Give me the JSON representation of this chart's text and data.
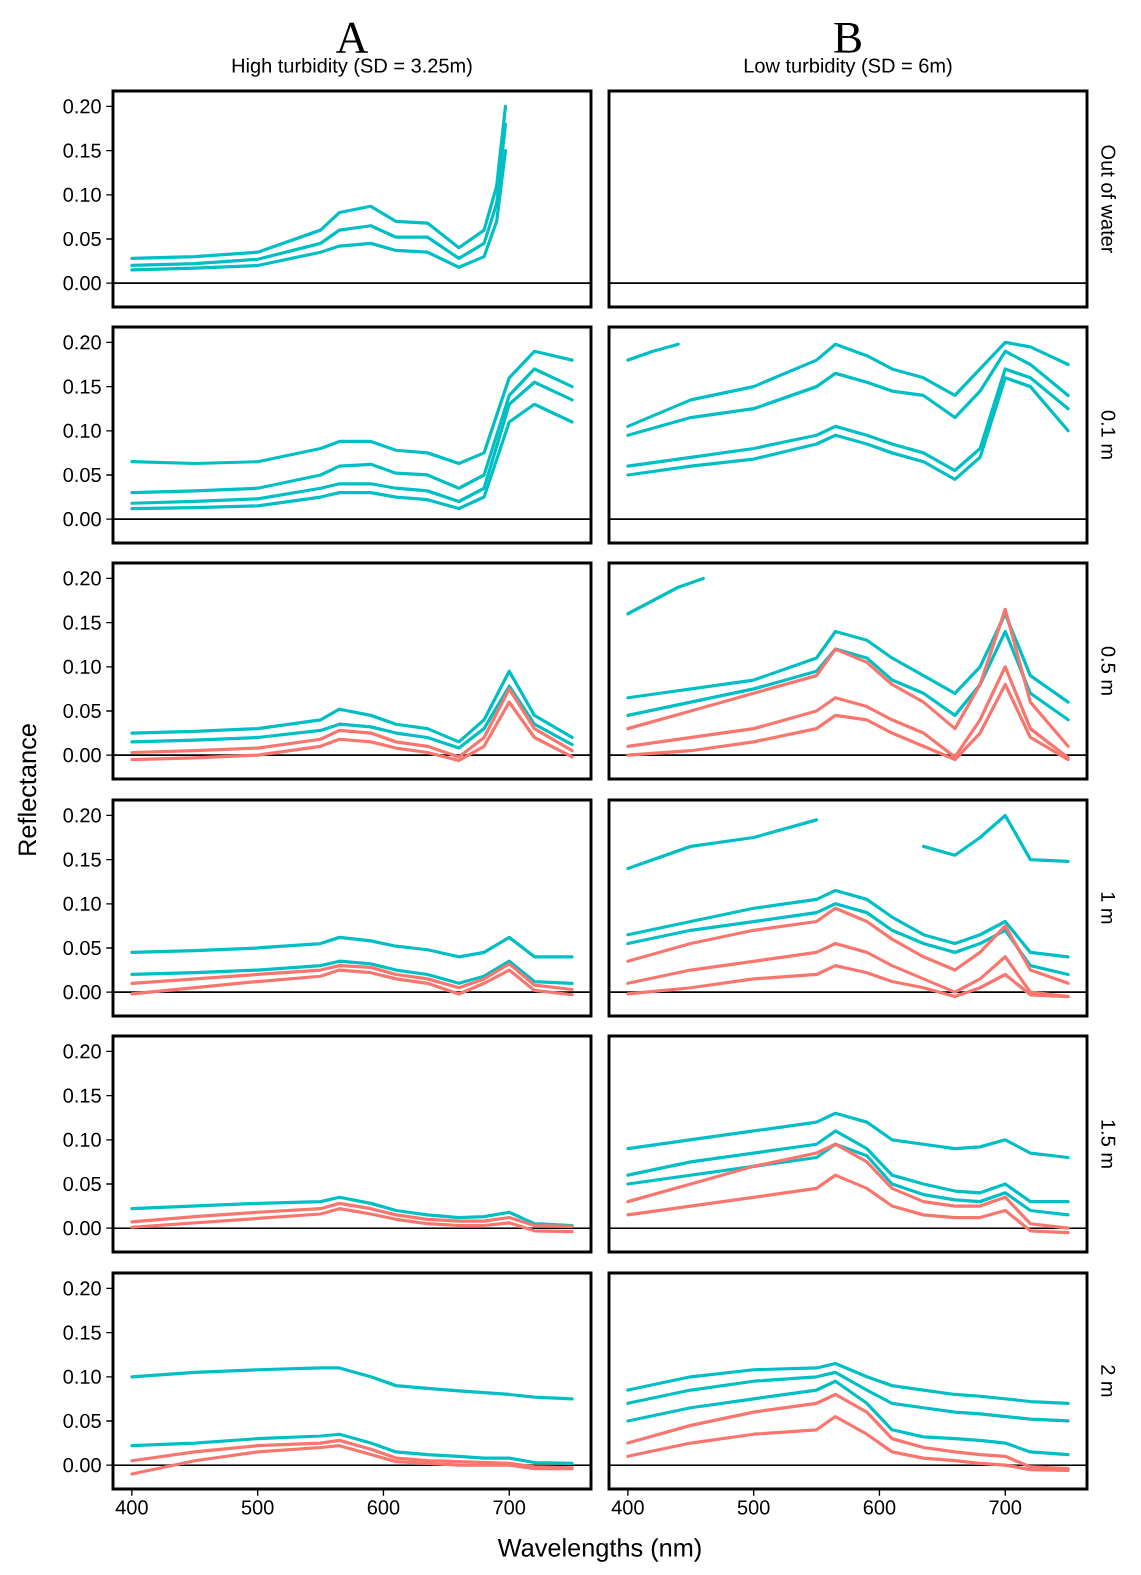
{
  "chart_data": [
    {
      "type": "line",
      "title": "A",
      "subtitle": "High turbidity (SD = 3.25m)",
      "xlim": [
        385,
        765
      ],
      "ylim": [
        -0.027,
        0.2175
      ],
      "tick_labels": "y",
      "yticks": [
        {
          "value": 0,
          "label": "0.00"
        },
        {
          "value": 0.05,
          "label": "0.05"
        },
        {
          "value": 0.1,
          "label": "0.10"
        },
        {
          "value": 0.15,
          "label": "0.15"
        },
        {
          "value": 0.2,
          "label": "0.20"
        }
      ],
      "ref_lines": [
        {
          "axis": "y",
          "value": 0
        }
      ],
      "x": [
        400,
        450,
        500,
        550,
        565,
        590,
        610,
        635,
        660,
        680,
        690,
        697
      ],
      "series": [
        {
          "color": "#00bfc4",
          "values": [
            0.028,
            0.03,
            0.035,
            0.06,
            0.08,
            0.087,
            0.07,
            0.068,
            0.04,
            0.06,
            0.11,
            0.2
          ]
        },
        {
          "color": "#00bfc4",
          "values": [
            0.02,
            0.022,
            0.027,
            0.045,
            0.06,
            0.065,
            0.052,
            0.052,
            0.028,
            0.045,
            0.09,
            0.18
          ]
        },
        {
          "color": "#00bfc4",
          "values": [
            0.015,
            0.017,
            0.02,
            0.035,
            0.042,
            0.045,
            0.037,
            0.035,
            0.018,
            0.03,
            0.07,
            0.15
          ]
        }
      ]
    },
    {
      "type": "line",
      "title": "B",
      "subtitle": "Low turbidity (SD = 6m)",
      "y2label": "Out of water",
      "xlim": [
        385,
        765
      ],
      "ylim": [
        -0.027,
        0.2175
      ],
      "tick_labels": false,
      "ref_lines": [
        {
          "axis": "y",
          "value": 0
        }
      ]
    },
    {
      "type": "line",
      "xlim": [
        385,
        765
      ],
      "ylim": [
        -0.027,
        0.2175
      ],
      "tick_labels": "y",
      "yticks": [
        {
          "value": 0,
          "label": "0.00"
        },
        {
          "value": 0.05,
          "label": "0.05"
        },
        {
          "value": 0.1,
          "label": "0.10"
        },
        {
          "value": 0.15,
          "label": "0.15"
        },
        {
          "value": 0.2,
          "label": "0.20"
        }
      ],
      "ref_lines": [
        {
          "axis": "y",
          "value": 0
        }
      ],
      "x": [
        400,
        450,
        500,
        550,
        565,
        590,
        610,
        635,
        660,
        680,
        700,
        720,
        750
      ],
      "series": [
        {
          "color": "#00bfc4",
          "values": [
            0.065,
            0.063,
            0.065,
            0.08,
            0.088,
            0.088,
            0.078,
            0.075,
            0.063,
            0.075,
            0.16,
            0.19,
            0.18
          ]
        },
        {
          "color": "#00bfc4",
          "values": [
            0.03,
            0.032,
            0.035,
            0.05,
            0.06,
            0.062,
            0.052,
            0.05,
            0.035,
            0.05,
            0.14,
            0.17,
            0.15
          ]
        },
        {
          "color": "#00bfc4",
          "values": [
            0.018,
            0.02,
            0.023,
            0.035,
            0.04,
            0.04,
            0.035,
            0.032,
            0.02,
            0.035,
            0.13,
            0.155,
            0.135
          ]
        },
        {
          "color": "#00bfc4",
          "values": [
            0.012,
            0.013,
            0.015,
            0.025,
            0.03,
            0.03,
            0.025,
            0.022,
            0.012,
            0.025,
            0.11,
            0.13,
            0.11
          ]
        }
      ]
    },
    {
      "type": "line",
      "y2label": "0.1 m",
      "xlim": [
        385,
        765
      ],
      "ylim": [
        -0.027,
        0.2175
      ],
      "tick_labels": false,
      "ref_lines": [
        {
          "axis": "y",
          "value": 0
        }
      ],
      "x": [
        400,
        450,
        500,
        550,
        565,
        590,
        610,
        635,
        660,
        680,
        700,
        720,
        750
      ],
      "series": [
        {
          "color": "#00bfc4",
          "values": [
            0.105,
            0.135,
            0.15,
            0.18,
            0.198,
            0.185,
            0.17,
            0.16,
            0.14,
            0.17,
            0.2,
            0.195,
            0.175
          ]
        },
        {
          "color": "#00bfc4",
          "values": [
            0.095,
            0.115,
            0.125,
            0.15,
            0.165,
            0.155,
            0.145,
            0.14,
            0.115,
            0.145,
            0.19,
            0.175,
            0.14
          ]
        },
        {
          "color": "#00bfc4",
          "values": [
            0.06,
            0.07,
            0.08,
            0.095,
            0.105,
            0.095,
            0.085,
            0.075,
            0.055,
            0.08,
            0.17,
            0.16,
            0.125
          ]
        },
        {
          "color": "#00bfc4",
          "values": [
            0.05,
            0.06,
            0.068,
            0.085,
            0.095,
            0.085,
            0.075,
            0.065,
            0.045,
            0.07,
            0.16,
            0.15,
            0.1
          ]
        },
        {
          "color": "#00bfc4",
          "x": [
            400,
            420,
            440
          ],
          "values": [
            0.18,
            0.19,
            0.198
          ]
        }
      ]
    },
    {
      "type": "line",
      "xlim": [
        385,
        765
      ],
      "ylim": [
        -0.027,
        0.2175
      ],
      "tick_labels": "y",
      "yticks": [
        {
          "value": 0,
          "label": "0.00"
        },
        {
          "value": 0.05,
          "label": "0.05"
        },
        {
          "value": 0.1,
          "label": "0.10"
        },
        {
          "value": 0.15,
          "label": "0.15"
        },
        {
          "value": 0.2,
          "label": "0.20"
        }
      ],
      "ref_lines": [
        {
          "axis": "y",
          "value": 0
        }
      ],
      "x": [
        400,
        450,
        500,
        550,
        565,
        590,
        610,
        635,
        660,
        680,
        700,
        720,
        750
      ],
      "series": [
        {
          "color": "#00bfc4",
          "values": [
            0.025,
            0.027,
            0.03,
            0.04,
            0.052,
            0.045,
            0.035,
            0.03,
            0.015,
            0.04,
            0.095,
            0.045,
            0.02
          ]
        },
        {
          "color": "#00bfc4",
          "values": [
            0.015,
            0.017,
            0.02,
            0.028,
            0.035,
            0.032,
            0.025,
            0.02,
            0.008,
            0.03,
            0.078,
            0.035,
            0.012
          ]
        },
        {
          "color": "#f8766d",
          "values": [
            0.003,
            0.005,
            0.008,
            0.018,
            0.028,
            0.025,
            0.015,
            0.01,
            -0.002,
            0.02,
            0.075,
            0.03,
            0.005
          ]
        },
        {
          "color": "#f8766d",
          "values": [
            -0.005,
            -0.003,
            0.0,
            0.01,
            0.018,
            0.015,
            0.008,
            0.003,
            -0.006,
            0.01,
            0.06,
            0.02,
            -0.002
          ]
        }
      ]
    },
    {
      "type": "line",
      "y2label": "0.5 m",
      "xlim": [
        385,
        765
      ],
      "ylim": [
        -0.027,
        0.2175
      ],
      "tick_labels": false,
      "ref_lines": [
        {
          "axis": "y",
          "value": 0
        }
      ],
      "x": [
        400,
        450,
        500,
        550,
        565,
        590,
        610,
        635,
        660,
        680,
        700,
        720,
        750
      ],
      "series": [
        {
          "color": "#00bfc4",
          "values": [
            0.065,
            0.075,
            0.085,
            0.11,
            0.14,
            0.13,
            0.11,
            0.09,
            0.07,
            0.1,
            0.16,
            0.09,
            0.06
          ]
        },
        {
          "color": "#00bfc4",
          "values": [
            0.045,
            0.06,
            0.075,
            0.095,
            0.12,
            0.11,
            0.085,
            0.07,
            0.045,
            0.08,
            0.14,
            0.07,
            0.04
          ]
        },
        {
          "color": "#00bfc4",
          "x": [
            400,
            420,
            440,
            460
          ],
          "values": [
            0.16,
            0.175,
            0.19,
            0.2
          ]
        },
        {
          "color": "#f8766d",
          "values": [
            0.03,
            0.05,
            0.07,
            0.09,
            0.12,
            0.105,
            0.08,
            0.06,
            0.03,
            0.08,
            0.165,
            0.06,
            0.01
          ]
        },
        {
          "color": "#f8766d",
          "values": [
            0.01,
            0.02,
            0.03,
            0.05,
            0.065,
            0.055,
            0.04,
            0.025,
            -0.002,
            0.04,
            0.1,
            0.03,
            -0.003
          ]
        },
        {
          "color": "#f8766d",
          "values": [
            0.0,
            0.005,
            0.015,
            0.03,
            0.045,
            0.04,
            0.025,
            0.01,
            -0.005,
            0.025,
            0.08,
            0.02,
            -0.005
          ]
        }
      ]
    },
    {
      "type": "line",
      "ylabel": "Reflectance",
      "xlim": [
        385,
        765
      ],
      "ylim": [
        -0.027,
        0.2175
      ],
      "tick_labels": "y",
      "yticks": [
        {
          "value": 0,
          "label": "0.00"
        },
        {
          "value": 0.05,
          "label": "0.05"
        },
        {
          "value": 0.1,
          "label": "0.10"
        },
        {
          "value": 0.15,
          "label": "0.15"
        },
        {
          "value": 0.2,
          "label": "0.20"
        }
      ],
      "ref_lines": [
        {
          "axis": "y",
          "value": 0
        }
      ],
      "x": [
        400,
        450,
        500,
        550,
        565,
        590,
        610,
        635,
        660,
        680,
        700,
        720,
        750
      ],
      "series": [
        {
          "color": "#00bfc4",
          "values": [
            0.045,
            0.047,
            0.05,
            0.055,
            0.062,
            0.058,
            0.052,
            0.048,
            0.04,
            0.045,
            0.062,
            0.04,
            0.04
          ]
        },
        {
          "color": "#00bfc4",
          "values": [
            0.02,
            0.022,
            0.025,
            0.03,
            0.035,
            0.032,
            0.025,
            0.02,
            0.01,
            0.018,
            0.035,
            0.012,
            0.01
          ]
        },
        {
          "color": "#f8766d",
          "values": [
            0.01,
            0.015,
            0.02,
            0.025,
            0.03,
            0.028,
            0.02,
            0.015,
            0.005,
            0.015,
            0.032,
            0.008,
            0.003
          ]
        },
        {
          "color": "#f8766d",
          "values": [
            -0.002,
            0.005,
            0.012,
            0.018,
            0.025,
            0.022,
            0.015,
            0.01,
            -0.002,
            0.01,
            0.025,
            0.002,
            -0.003
          ]
        }
      ]
    },
    {
      "type": "line",
      "y2label": "1 m",
      "xlim": [
        385,
        765
      ],
      "ylim": [
        -0.027,
        0.2175
      ],
      "tick_labels": false,
      "ref_lines": [
        {
          "axis": "y",
          "value": 0
        }
      ],
      "x": [
        400,
        450,
        500,
        550,
        565,
        590,
        610,
        635,
        660,
        680,
        700,
        720,
        750
      ],
      "series": [
        {
          "color": "#00bfc4",
          "values": [
            0.14,
            0.165,
            0.175,
            0.195,
            null,
            null,
            null,
            0.165,
            0.155,
            0.175,
            0.2,
            0.15,
            0.148
          ]
        },
        {
          "color": "#00bfc4",
          "values": [
            0.065,
            0.08,
            0.095,
            0.105,
            0.115,
            0.105,
            0.085,
            0.065,
            0.055,
            0.065,
            0.08,
            0.045,
            0.04
          ]
        },
        {
          "color": "#00bfc4",
          "values": [
            0.055,
            0.07,
            0.08,
            0.09,
            0.1,
            0.09,
            0.07,
            0.055,
            0.045,
            0.055,
            0.07,
            0.03,
            0.02
          ]
        },
        {
          "color": "#f8766d",
          "values": [
            0.035,
            0.055,
            0.07,
            0.08,
            0.095,
            0.08,
            0.06,
            0.04,
            0.025,
            0.045,
            0.075,
            0.025,
            0.01
          ]
        },
        {
          "color": "#f8766d",
          "values": [
            0.01,
            0.025,
            0.035,
            0.045,
            0.055,
            0.045,
            0.03,
            0.015,
            0.0,
            0.015,
            0.04,
            0.0,
            -0.005
          ]
        },
        {
          "color": "#f8766d",
          "values": [
            -0.002,
            0.005,
            0.015,
            0.02,
            0.03,
            0.022,
            0.012,
            0.005,
            -0.005,
            0.005,
            0.02,
            -0.003,
            -0.005
          ]
        }
      ]
    },
    {
      "type": "line",
      "xlim": [
        385,
        765
      ],
      "ylim": [
        -0.027,
        0.2175
      ],
      "tick_labels": "y",
      "yticks": [
        {
          "value": 0,
          "label": "0.00"
        },
        {
          "value": 0.05,
          "label": "0.05"
        },
        {
          "value": 0.1,
          "label": "0.10"
        },
        {
          "value": 0.15,
          "label": "0.15"
        },
        {
          "value": 0.2,
          "label": "0.20"
        }
      ],
      "ref_lines": [
        {
          "axis": "y",
          "value": 0
        }
      ],
      "x": [
        400,
        450,
        500,
        550,
        565,
        590,
        610,
        635,
        660,
        680,
        700,
        720,
        750
      ],
      "series": [
        {
          "color": "#00bfc4",
          "values": [
            0.022,
            0.025,
            0.028,
            0.03,
            0.035,
            0.028,
            0.02,
            0.015,
            0.012,
            0.013,
            0.018,
            0.005,
            0.003
          ]
        },
        {
          "color": "#f8766d",
          "values": [
            0.007,
            0.013,
            0.018,
            0.022,
            0.028,
            0.022,
            0.015,
            0.01,
            0.008,
            0.008,
            0.012,
            0.003,
            0.002
          ]
        },
        {
          "color": "#f8766d",
          "values": [
            0.001,
            0.006,
            0.011,
            0.016,
            0.022,
            0.016,
            0.01,
            0.005,
            0.003,
            0.003,
            0.006,
            -0.003,
            -0.004
          ]
        }
      ]
    },
    {
      "type": "line",
      "y2label": "1.5 m",
      "xlim": [
        385,
        765
      ],
      "ylim": [
        -0.027,
        0.2175
      ],
      "tick_labels": false,
      "ref_lines": [
        {
          "axis": "y",
          "value": 0
        }
      ],
      "x": [
        400,
        450,
        500,
        550,
        565,
        590,
        610,
        635,
        660,
        680,
        700,
        720,
        750
      ],
      "series": [
        {
          "color": "#00bfc4",
          "values": [
            0.09,
            0.1,
            0.11,
            0.12,
            0.13,
            0.12,
            0.1,
            0.095,
            0.09,
            0.092,
            0.1,
            0.085,
            0.08
          ]
        },
        {
          "color": "#00bfc4",
          "values": [
            0.06,
            0.075,
            0.085,
            0.095,
            0.11,
            0.09,
            0.06,
            0.05,
            0.042,
            0.04,
            0.05,
            0.03,
            0.03
          ]
        },
        {
          "color": "#00bfc4",
          "values": [
            0.05,
            0.06,
            0.07,
            0.08,
            0.095,
            0.082,
            0.05,
            0.038,
            0.032,
            0.03,
            0.04,
            0.02,
            0.015
          ]
        },
        {
          "color": "#f8766d",
          "values": [
            0.03,
            0.05,
            0.07,
            0.085,
            0.095,
            0.075,
            0.045,
            0.03,
            0.025,
            0.025,
            0.035,
            0.005,
            0.0
          ]
        },
        {
          "color": "#f8766d",
          "values": [
            0.015,
            0.025,
            0.035,
            0.045,
            0.06,
            0.045,
            0.025,
            0.015,
            0.012,
            0.012,
            0.02,
            -0.003,
            -0.005
          ]
        }
      ]
    },
    {
      "type": "line",
      "xlabel": "Wavelengths (nm)",
      "xlim": [
        385,
        765
      ],
      "ylim": [
        -0.027,
        0.2175
      ],
      "xticks": [
        400,
        500,
        600,
        700
      ],
      "yticks": [
        {
          "value": 0,
          "label": "0.00"
        },
        {
          "value": 0.05,
          "label": "0.05"
        },
        {
          "value": 0.1,
          "label": "0.10"
        },
        {
          "value": 0.15,
          "label": "0.15"
        },
        {
          "value": 0.2,
          "label": "0.20"
        }
      ],
      "ref_lines": [
        {
          "axis": "y",
          "value": 0
        }
      ],
      "x": [
        400,
        450,
        500,
        550,
        565,
        590,
        610,
        635,
        660,
        680,
        700,
        720,
        750
      ],
      "series": [
        {
          "color": "#00bfc4",
          "values": [
            0.1,
            0.105,
            0.108,
            0.11,
            0.11,
            0.1,
            0.09,
            0.087,
            0.084,
            0.082,
            0.08,
            0.077,
            0.075
          ]
        },
        {
          "color": "#00bfc4",
          "values": [
            0.022,
            0.025,
            0.03,
            0.033,
            0.035,
            0.025,
            0.015,
            0.012,
            0.01,
            0.008,
            0.008,
            0.003,
            0.002
          ]
        },
        {
          "color": "#f8766d",
          "values": [
            0.005,
            0.015,
            0.022,
            0.025,
            0.028,
            0.018,
            0.008,
            0.005,
            0.004,
            0.003,
            0.002,
            -0.002,
            -0.003
          ]
        },
        {
          "color": "#f8766d",
          "values": [
            -0.01,
            0.005,
            0.015,
            0.02,
            0.022,
            0.012,
            0.004,
            0.002,
            0.0,
            0.0,
            0.0,
            -0.004,
            -0.004
          ]
        }
      ]
    },
    {
      "type": "line",
      "y2label": "2 m",
      "xlim": [
        385,
        765
      ],
      "ylim": [
        -0.027,
        0.2175
      ],
      "tick_labels": "x",
      "xticks": [
        400,
        500,
        600,
        700
      ],
      "ref_lines": [
        {
          "axis": "y",
          "value": 0
        }
      ],
      "x": [
        400,
        450,
        500,
        550,
        565,
        590,
        610,
        635,
        660,
        680,
        700,
        720,
        750
      ],
      "series": [
        {
          "color": "#00bfc4",
          "values": [
            0.085,
            0.1,
            0.108,
            0.11,
            0.115,
            0.1,
            0.09,
            0.085,
            0.08,
            0.078,
            0.075,
            0.072,
            0.07
          ]
        },
        {
          "color": "#00bfc4",
          "values": [
            0.07,
            0.085,
            0.095,
            0.1,
            0.105,
            0.085,
            0.07,
            0.065,
            0.06,
            0.058,
            0.055,
            0.052,
            0.05
          ]
        },
        {
          "color": "#00bfc4",
          "values": [
            0.05,
            0.065,
            0.075,
            0.085,
            0.095,
            0.07,
            0.04,
            0.032,
            0.03,
            0.028,
            0.025,
            0.015,
            0.012
          ]
        },
        {
          "color": "#f8766d",
          "values": [
            0.025,
            0.045,
            0.06,
            0.07,
            0.08,
            0.06,
            0.03,
            0.02,
            0.015,
            0.012,
            0.01,
            -0.002,
            -0.004
          ]
        },
        {
          "color": "#f8766d",
          "values": [
            0.01,
            0.025,
            0.035,
            0.04,
            0.055,
            0.035,
            0.015,
            0.008,
            0.005,
            0.002,
            0.0,
            -0.005,
            -0.006
          ]
        }
      ]
    }
  ]
}
